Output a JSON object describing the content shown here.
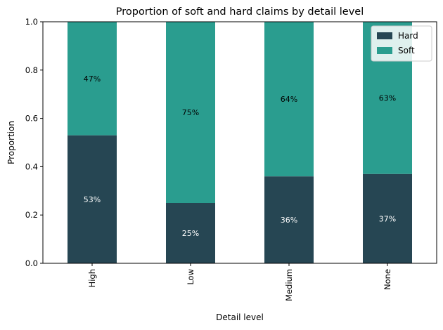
{
  "chart_data": {
    "type": "bar",
    "stacked": true,
    "title": "Proportion of soft and hard claims by detail level",
    "xlabel": "Detail level",
    "ylabel": "Proportion",
    "ylim": [
      0,
      1
    ],
    "yticks": [
      "0.0",
      "0.2",
      "0.4",
      "0.6",
      "0.8",
      "1.0"
    ],
    "categories": [
      "High",
      "Low",
      "Medium",
      "None"
    ],
    "series": [
      {
        "name": "Hard",
        "color": "#264653",
        "values": [
          0.53,
          0.25,
          0.36,
          0.37
        ],
        "labels": [
          "53%",
          "25%",
          "36%",
          "37%"
        ]
      },
      {
        "name": "Soft",
        "color": "#2a9d8f",
        "values": [
          0.47,
          0.75,
          0.64,
          0.63
        ],
        "labels": [
          "47%",
          "75%",
          "64%",
          "63%"
        ]
      }
    ],
    "grid": false,
    "legend_position": "top-right"
  }
}
